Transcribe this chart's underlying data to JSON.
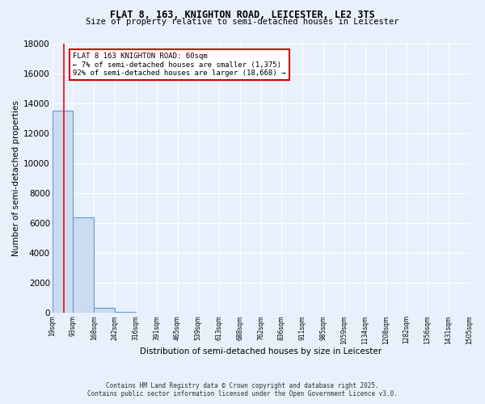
{
  "title1": "FLAT 8, 163, KNIGHTON ROAD, LEICESTER, LE2 3TS",
  "title2": "Size of property relative to semi-detached houses in Leicester",
  "xlabel": "Distribution of semi-detached houses by size in Leicester",
  "ylabel": "Number of semi-detached properties",
  "bin_edges": [
    19,
    93,
    168,
    242,
    316,
    391,
    465,
    539,
    613,
    688,
    762,
    836,
    911,
    985,
    1059,
    1134,
    1208,
    1282,
    1356,
    1431,
    1505
  ],
  "bar_heights": [
    13500,
    6400,
    350,
    100,
    0,
    0,
    0,
    0,
    0,
    0,
    0,
    0,
    0,
    0,
    0,
    0,
    0,
    0,
    0,
    0
  ],
  "bar_color": "#ccdcf0",
  "bar_edge_color": "#5b9bd5",
  "property_size": 60,
  "red_line_color": "#ff0000",
  "annotation_text": "FLAT 8 163 KNIGHTON ROAD: 60sqm\n← 7% of semi-detached houses are smaller (1,375)\n92% of semi-detached houses are larger (18,668) →",
  "annotation_box_color": "#ffffff",
  "annotation_box_edge": "#cc0000",
  "ylim": [
    0,
    18000
  ],
  "yticks": [
    0,
    2000,
    4000,
    6000,
    8000,
    10000,
    12000,
    14000,
    16000,
    18000
  ],
  "background_color": "#e8f0fc",
  "grid_color": "#ffffff",
  "footer1": "Contains HM Land Registry data © Crown copyright and database right 2025.",
  "footer2": "Contains public sector information licensed under the Open Government Licence v3.0."
}
